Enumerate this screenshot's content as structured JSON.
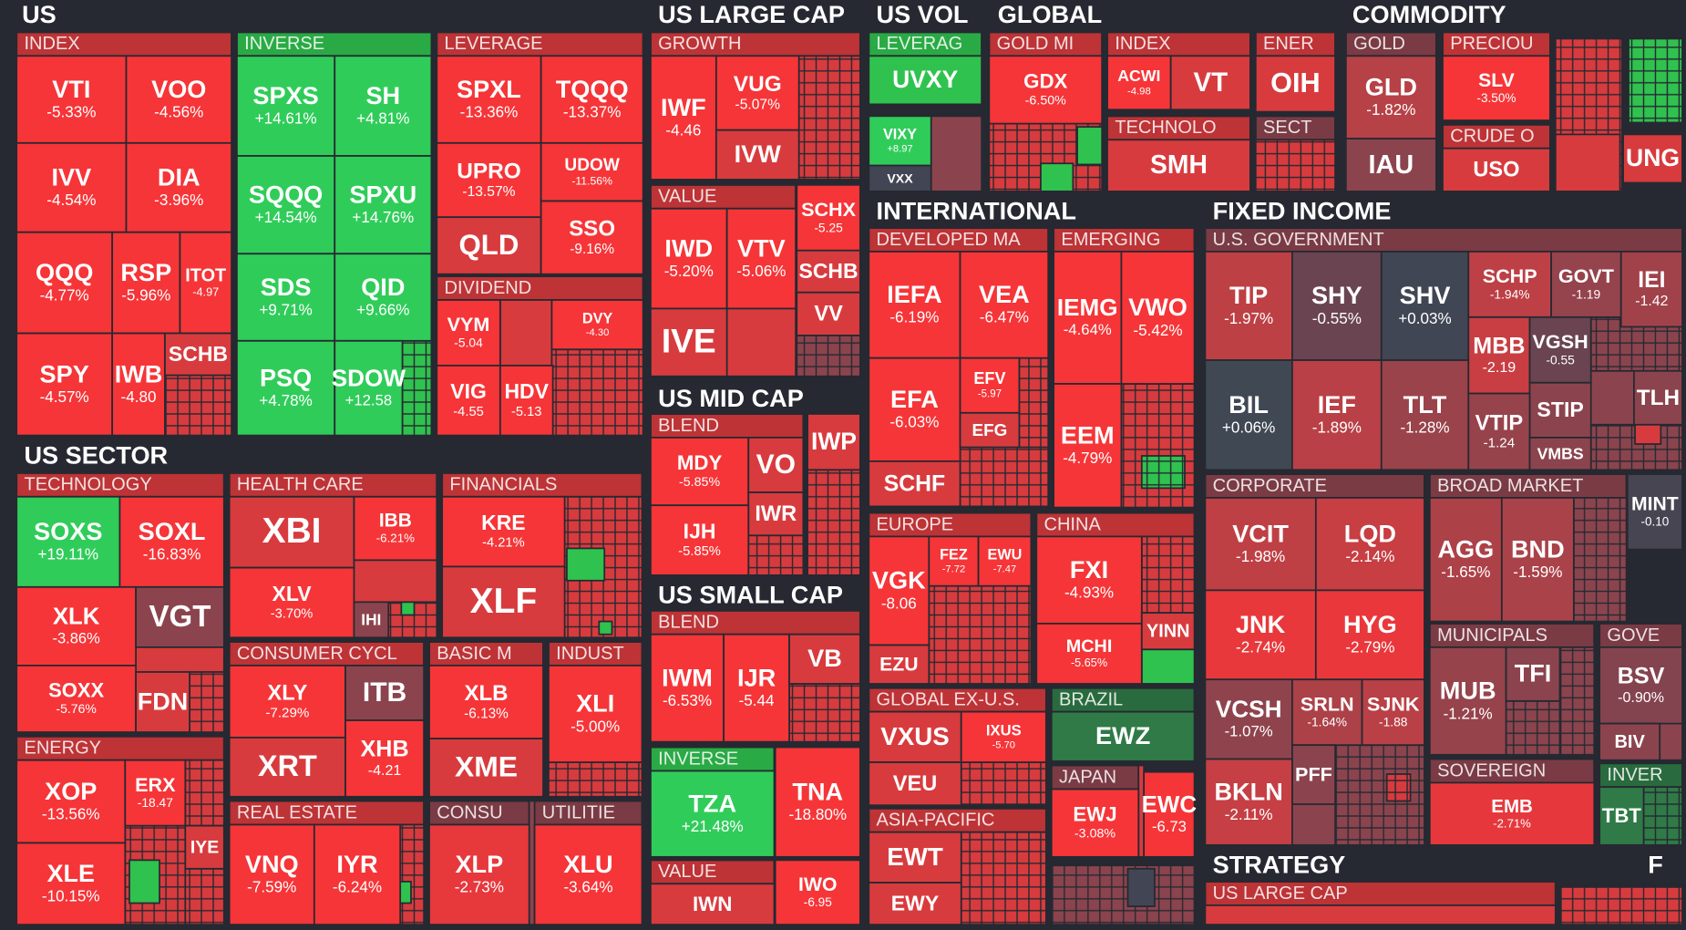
{
  "sections": [
    {
      "title": "US",
      "groups": [
        {
          "title": "INDEX",
          "tiles": [
            {
              "ticker": "VTI",
              "change": "-5.33%"
            },
            {
              "ticker": "VOO",
              "change": "-4.56%"
            },
            {
              "ticker": "IVV",
              "change": "-4.54%"
            },
            {
              "ticker": "DIA",
              "change": "-3.96%"
            },
            {
              "ticker": "QQQ",
              "change": "-4.77%"
            },
            {
              "ticker": "RSP",
              "change": "-5.96%"
            },
            {
              "ticker": "ITOT",
              "change": "-4.97"
            },
            {
              "ticker": "SPY",
              "change": "-4.57%"
            },
            {
              "ticker": "IWB",
              "change": "-4.80"
            },
            {
              "ticker": "SCHB"
            }
          ]
        },
        {
          "title": "INVERSE",
          "tiles": [
            {
              "ticker": "SPXS",
              "change": "+14.61%"
            },
            {
              "ticker": "SH",
              "change": "+4.81%"
            },
            {
              "ticker": "SQQQ",
              "change": "+14.54%"
            },
            {
              "ticker": "SPXU",
              "change": "+14.76%"
            },
            {
              "ticker": "SDS",
              "change": "+9.71%"
            },
            {
              "ticker": "QID",
              "change": "+9.66%"
            },
            {
              "ticker": "PSQ",
              "change": "+4.78%"
            },
            {
              "ticker": "SDOW",
              "change": "+12.58"
            }
          ]
        },
        {
          "title": "LEVERAGE",
          "tiles": [
            {
              "ticker": "SPXL",
              "change": "-13.36%"
            },
            {
              "ticker": "TQQQ",
              "change": "-13.37%"
            },
            {
              "ticker": "UPRO",
              "change": "-13.57%"
            },
            {
              "ticker": "UDOW",
              "change": "-11.56%"
            },
            {
              "ticker": "QLD"
            },
            {
              "ticker": "SSO",
              "change": "-9.16%"
            }
          ]
        },
        {
          "title": "DIVIDEND",
          "tiles": [
            {
              "ticker": "VYM",
              "change": "-5.04"
            },
            {
              "ticker": "DVY",
              "change": "-4.30"
            },
            {
              "ticker": "VIG",
              "change": "-4.55"
            },
            {
              "ticker": "HDV",
              "change": "-5.13"
            }
          ]
        }
      ]
    },
    {
      "title": "US LARGE CAP",
      "groups": [
        {
          "title": "GROWTH",
          "tiles": [
            {
              "ticker": "IWF",
              "change": "-4.46"
            },
            {
              "ticker": "VUG",
              "change": "-5.07%"
            },
            {
              "ticker": "IVW"
            }
          ]
        },
        {
          "title": "VALUE",
          "tiles": [
            {
              "ticker": "IWD",
              "change": "-5.20%"
            },
            {
              "ticker": "VTV",
              "change": "-5.06%"
            },
            {
              "ticker": "IVE"
            }
          ]
        },
        {
          "tiles": [
            {
              "ticker": "SCHX",
              "change": "-5.25"
            },
            {
              "ticker": "SCHB"
            },
            {
              "ticker": "VV"
            }
          ]
        }
      ]
    },
    {
      "title": "US MID CAP",
      "groups": [
        {
          "title": "BLEND",
          "tiles": [
            {
              "ticker": "MDY",
              "change": "-5.85%"
            },
            {
              "ticker": "VO"
            },
            {
              "ticker": "IWR"
            },
            {
              "ticker": "IJH",
              "change": "-5.85%"
            }
          ]
        },
        {
          "tiles": [
            {
              "ticker": "IWP"
            }
          ]
        }
      ]
    },
    {
      "title": "US SMALL CAP",
      "groups": [
        {
          "title": "BLEND",
          "tiles": [
            {
              "ticker": "IWM",
              "change": "-6.53%"
            },
            {
              "ticker": "IJR",
              "change": "-5.44"
            },
            {
              "ticker": "VB"
            }
          ]
        },
        {
          "title": "INVERSE",
          "tiles": [
            {
              "ticker": "TZA",
              "change": "+21.48%"
            }
          ]
        },
        {
          "tiles": [
            {
              "ticker": "TNA",
              "change": "-18.80%"
            }
          ]
        },
        {
          "title": "VALUE",
          "tiles": [
            {
              "ticker": "IWN"
            }
          ]
        },
        {
          "tiles": [
            {
              "ticker": "IWO",
              "change": "-6.95"
            }
          ]
        }
      ]
    },
    {
      "title": "US VOL",
      "groups": [
        {
          "title": "LEVERAG",
          "tiles": [
            {
              "ticker": "UVXY"
            }
          ]
        },
        {
          "tiles": [
            {
              "ticker": "VIXY",
              "change": "+8.97"
            },
            {
              "ticker": "VXX"
            }
          ]
        }
      ]
    },
    {
      "title": "GLOBAL",
      "groups": [
        {
          "title": "GOLD MI",
          "tiles": [
            {
              "ticker": "GDX",
              "change": "-6.50%"
            }
          ]
        },
        {
          "title": "INDEX",
          "tiles": [
            {
              "ticker": "ACWI",
              "change": "-4.98"
            },
            {
              "ticker": "VT"
            }
          ]
        },
        {
          "title": "TECHNOLO",
          "tiles": [
            {
              "ticker": "SMH"
            }
          ]
        },
        {
          "title": "ENER",
          "tiles": [
            {
              "ticker": "OIH"
            }
          ]
        },
        {
          "title": "SECT",
          "tiles": []
        }
      ]
    },
    {
      "title": "COMMODITY",
      "groups": [
        {
          "title": "GOLD",
          "tiles": [
            {
              "ticker": "GLD",
              "change": "-1.82%"
            },
            {
              "ticker": "IAU"
            }
          ]
        },
        {
          "title": "PRECIOU",
          "tiles": [
            {
              "ticker": "SLV",
              "change": "-3.50%"
            }
          ]
        },
        {
          "title": "CRUDE O",
          "tiles": [
            {
              "ticker": "USO"
            }
          ]
        },
        {
          "tiles": [
            {
              "ticker": "UNG"
            }
          ]
        }
      ]
    },
    {
      "title": "INTERNATIONAL",
      "groups": [
        {
          "title": "DEVELOPED MA",
          "tiles": [
            {
              "ticker": "IEFA",
              "change": "-6.19%"
            },
            {
              "ticker": "VEA",
              "change": "-6.47%"
            },
            {
              "ticker": "EFA",
              "change": "-6.03%"
            },
            {
              "ticker": "EFV",
              "change": "-5.97"
            },
            {
              "ticker": "EFG"
            },
            {
              "ticker": "SCHF"
            }
          ]
        },
        {
          "title": "EMERGING",
          "tiles": [
            {
              "ticker": "IEMG",
              "change": "-4.64%"
            },
            {
              "ticker": "VWO",
              "change": "-5.42%"
            },
            {
              "ticker": "EEM",
              "change": "-4.79%"
            }
          ]
        },
        {
          "title": "EUROPE",
          "tiles": [
            {
              "ticker": "VGK",
              "change": "-8.06"
            },
            {
              "ticker": "FEZ",
              "change": "-7.72"
            },
            {
              "ticker": "EWU",
              "change": "-7.47"
            },
            {
              "ticker": "EZU"
            }
          ]
        },
        {
          "title": "CHINA",
          "tiles": [
            {
              "ticker": "FXI",
              "change": "-4.93%"
            },
            {
              "ticker": "MCHI",
              "change": "-5.65%"
            },
            {
              "ticker": "YINN"
            }
          ]
        },
        {
          "title": "GLOBAL EX-U.S.",
          "tiles": [
            {
              "ticker": "VXUS"
            },
            {
              "ticker": "IXUS",
              "change": "-5.70"
            },
            {
              "ticker": "VEU"
            }
          ]
        },
        {
          "title": "BRAZIL",
          "tiles": [
            {
              "ticker": "EWZ"
            }
          ]
        },
        {
          "title": "JAPAN",
          "tiles": [
            {
              "ticker": "EWJ",
              "change": "-3.08%"
            }
          ]
        },
        {
          "tiles": [
            {
              "ticker": "EWC",
              "change": "-6.73"
            }
          ]
        },
        {
          "title": "ASIA-PACIFIC",
          "tiles": [
            {
              "ticker": "EWT"
            },
            {
              "ticker": "EWY"
            }
          ]
        }
      ]
    },
    {
      "title": "FIXED INCOME",
      "groups": [
        {
          "title": "U.S. GOVERNMENT",
          "tiles": [
            {
              "ticker": "TIP",
              "change": "-1.97%"
            },
            {
              "ticker": "SHY",
              "change": "-0.55%"
            },
            {
              "ticker": "SHV",
              "change": "+0.03%"
            },
            {
              "ticker": "SCHP",
              "change": "-1.94%"
            },
            {
              "ticker": "GOVT",
              "change": "-1.19"
            },
            {
              "ticker": "IEI",
              "change": "-1.42"
            },
            {
              "ticker": "BIL",
              "change": "+0.06%"
            },
            {
              "ticker": "IEF",
              "change": "-1.89%"
            },
            {
              "ticker": "TLT",
              "change": "-1.28%"
            },
            {
              "ticker": "MBB",
              "change": "-2.19"
            },
            {
              "ticker": "VGSH",
              "change": "-0.55"
            },
            {
              "ticker": "STIP"
            },
            {
              "ticker": "VTIP",
              "change": "-1.24"
            },
            {
              "ticker": "VMBS"
            },
            {
              "ticker": "TLH"
            }
          ]
        },
        {
          "title": "CORPORATE",
          "tiles": [
            {
              "ticker": "VCIT",
              "change": "-1.98%"
            },
            {
              "ticker": "LQD",
              "change": "-2.14%"
            },
            {
              "ticker": "JNK",
              "change": "-2.74%"
            },
            {
              "ticker": "HYG",
              "change": "-2.79%"
            },
            {
              "ticker": "VCSH",
              "change": "-1.07%"
            },
            {
              "ticker": "SRLN",
              "change": "-1.64%"
            },
            {
              "ticker": "SJNK",
              "change": "-1.88"
            },
            {
              "ticker": "PFF"
            },
            {
              "ticker": "BKLN",
              "change": "-2.11%"
            }
          ]
        },
        {
          "title": "BROAD MARKET",
          "tiles": [
            {
              "ticker": "AGG",
              "change": "-1.65%"
            },
            {
              "ticker": "BND",
              "change": "-1.59%"
            }
          ]
        },
        {
          "tiles": [
            {
              "ticker": "MINT",
              "change": "-0.10"
            }
          ]
        },
        {
          "title": "MUNICIPALS",
          "tiles": [
            {
              "ticker": "MUB",
              "change": "-1.21%"
            },
            {
              "ticker": "TFI"
            }
          ]
        },
        {
          "title": "GOVE",
          "tiles": [
            {
              "ticker": "BSV",
              "change": "-0.90%"
            },
            {
              "ticker": "BIV"
            }
          ]
        },
        {
          "title": "SOVEREIGN",
          "tiles": [
            {
              "ticker": "EMB",
              "change": "-2.71%"
            }
          ]
        },
        {
          "title": "INVER",
          "tiles": [
            {
              "ticker": "TBT"
            }
          ]
        }
      ]
    },
    {
      "title": "US SECTOR",
      "groups": [
        {
          "title": "TECHNOLOGY",
          "tiles": [
            {
              "ticker": "SOXS",
              "change": "+19.11%"
            },
            {
              "ticker": "SOXL",
              "change": "-16.83%"
            },
            {
              "ticker": "XLK",
              "change": "-3.86%"
            },
            {
              "ticker": "VGT"
            },
            {
              "ticker": "SOXX",
              "change": "-5.76%"
            },
            {
              "ticker": "FDN"
            }
          ]
        },
        {
          "title": "HEALTH CARE",
          "tiles": [
            {
              "ticker": "XBI"
            },
            {
              "ticker": "IBB",
              "change": "-6.21%"
            },
            {
              "ticker": "XLV",
              "change": "-3.70%"
            },
            {
              "ticker": "IHI"
            }
          ]
        },
        {
          "title": "FINANCIALS",
          "tiles": [
            {
              "ticker": "KRE",
              "change": "-4.21%"
            },
            {
              "ticker": "XLF"
            }
          ]
        },
        {
          "title": "CONSUMER CYCL",
          "tiles": [
            {
              "ticker": "XLY",
              "change": "-7.29%"
            },
            {
              "ticker": "ITB"
            },
            {
              "ticker": "XRT"
            },
            {
              "ticker": "XHB",
              "change": "-4.21"
            }
          ]
        },
        {
          "title": "BASIC M",
          "tiles": [
            {
              "ticker": "XLB",
              "change": "-6.13%"
            },
            {
              "ticker": "XME"
            }
          ]
        },
        {
          "title": "INDUST",
          "tiles": [
            {
              "ticker": "XLI",
              "change": "-5.00%"
            }
          ]
        },
        {
          "title": "ENERGY",
          "tiles": [
            {
              "ticker": "XOP",
              "change": "-13.56%"
            },
            {
              "ticker": "ERX",
              "change": "-18.47"
            },
            {
              "ticker": "XLE",
              "change": "-10.15%"
            },
            {
              "ticker": "IYE"
            }
          ]
        },
        {
          "title": "REAL ESTATE",
          "tiles": [
            {
              "ticker": "VNQ",
              "change": "-7.59%"
            },
            {
              "ticker": "IYR",
              "change": "-6.24%"
            }
          ]
        },
        {
          "title": "CONSU",
          "tiles": [
            {
              "ticker": "XLP",
              "change": "-2.73%"
            }
          ]
        },
        {
          "title": "UTILITIE",
          "tiles": [
            {
              "ticker": "XLU",
              "change": "-3.64%"
            }
          ]
        }
      ]
    },
    {
      "title": "STRATEGY",
      "groups": [
        {
          "title": "US LARGE CAP",
          "tiles": []
        }
      ]
    },
    {
      "title": "F"
    }
  ]
}
